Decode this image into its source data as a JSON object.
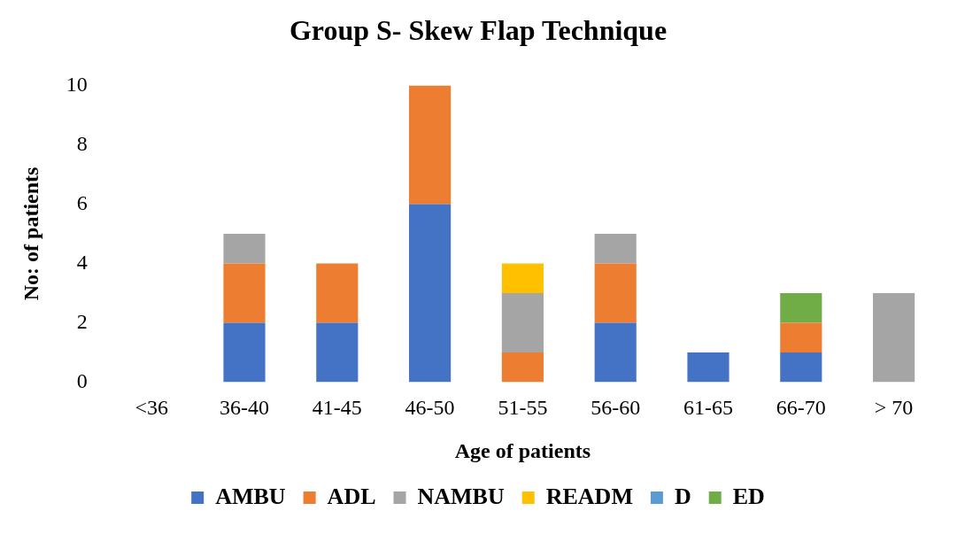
{
  "chart_data": {
    "type": "bar",
    "title": "Group S- Skew Flap Technique",
    "xlabel": "Age of patients",
    "ylabel": "No: of patients",
    "categories": [
      "<36",
      "36-40",
      "41-45",
      "46-50",
      "51-55",
      "56-60",
      "61-65",
      "66-70",
      "> 70"
    ],
    "stacked": true,
    "ylim": [
      0,
      10
    ],
    "yticks": [
      0,
      2,
      4,
      6,
      8,
      10
    ],
    "grid": false,
    "legend": "bottom",
    "series": [
      {
        "name": "AMBU",
        "color": "#4472c4",
        "values": [
          0,
          2,
          2,
          6,
          0,
          2,
          1,
          1,
          0
        ]
      },
      {
        "name": "ADL",
        "color": "#ed7d31",
        "values": [
          0,
          2,
          2,
          4,
          1,
          2,
          0,
          1,
          0
        ]
      },
      {
        "name": "NAMBU",
        "color": "#a5a5a5",
        "values": [
          0,
          1,
          0,
          0,
          2,
          1,
          0,
          0,
          3
        ]
      },
      {
        "name": "READM",
        "color": "#ffc000",
        "values": [
          0,
          0,
          0,
          0,
          1,
          0,
          0,
          0,
          0
        ]
      },
      {
        "name": "D",
        "color": "#5b9bd5",
        "values": [
          0,
          0,
          0,
          0,
          0,
          0,
          0,
          0,
          0
        ]
      },
      {
        "name": "ED",
        "color": "#70ad47",
        "values": [
          0,
          0,
          0,
          0,
          0,
          0,
          0,
          1,
          0
        ]
      }
    ]
  }
}
